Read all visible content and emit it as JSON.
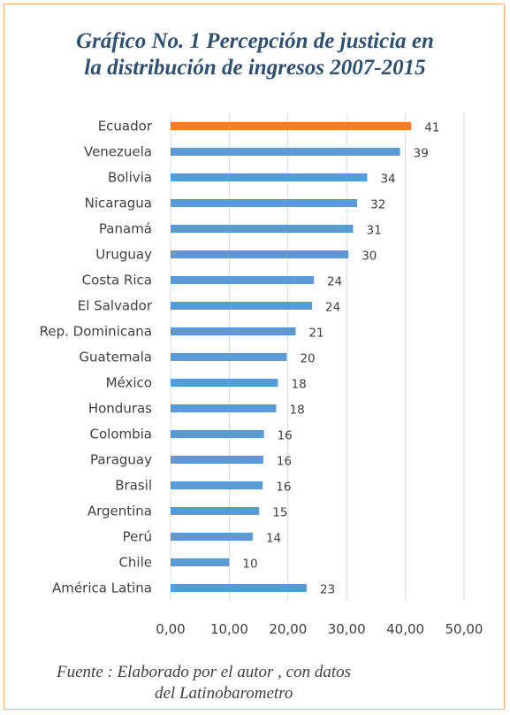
{
  "title_lines": [
    "Gráfico No. 1 Percepción de justicia en",
    "la distribución de ingresos 2007-2015"
  ],
  "source_lines": [
    "Fuente : Elaborado por el autor , con datos",
    "del Latinobarometro"
  ],
  "colors": {
    "bar": "#5b9bd5",
    "highlight": "#ed7d31",
    "frame": "#f4b183",
    "grid": "#d9d9d9"
  },
  "chart_data": {
    "type": "bar",
    "orientation": "horizontal",
    "categories": [
      "Ecuador",
      "Venezuela",
      "Bolivia",
      "Nicaragua",
      "Panamá",
      "Uruguay",
      "Costa Rica",
      "El Salvador",
      "Rep. Dominicana",
      "Guatemala",
      "México",
      "Honduras",
      "Colombia",
      "Paraguay",
      "Brasil",
      "Argentina",
      "Perú",
      "Chile",
      "América Latina"
    ],
    "values": [
      41,
      39,
      34,
      32,
      31,
      30,
      24,
      24,
      21,
      20,
      18,
      18,
      16,
      16,
      16,
      15,
      14,
      10,
      23
    ],
    "plot_values": [
      41.0,
      39.1,
      33.5,
      31.8,
      31.1,
      30.3,
      24.4,
      24.1,
      21.3,
      19.8,
      18.3,
      18.0,
      15.9,
      15.8,
      15.7,
      15.1,
      14.0,
      10.0,
      23.2
    ],
    "highlight_category": "Ecuador",
    "xlim": [
      0,
      50
    ],
    "xticks": [
      "0,00",
      "10,00",
      "20,00",
      "30,00",
      "40,00",
      "50,00"
    ],
    "grid": true
  }
}
